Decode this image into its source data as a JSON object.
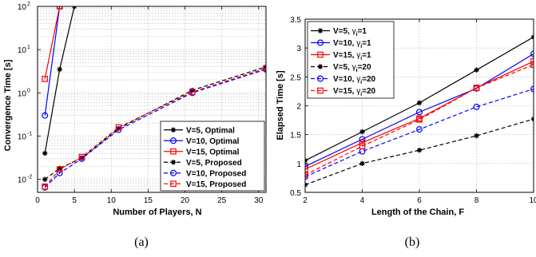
{
  "chart_data": [
    {
      "type": "line",
      "caption": "(a)",
      "xlabel": "Number of Players, N",
      "ylabel": "Convergence Time [s]",
      "xlim": [
        0,
        31
      ],
      "ylim": [
        0.005,
        100
      ],
      "yscale": "log",
      "grid": true,
      "legend_position": "bottom-right",
      "xticks": [
        0,
        5,
        10,
        15,
        20,
        25,
        30
      ],
      "xtick_labels": [
        "0",
        "5",
        "10",
        "15",
        "20",
        "25",
        "30"
      ],
      "ytick_labels": [
        "10",
        "10",
        "10",
        "10",
        "10"
      ],
      "ytick_exponents": [
        "-2",
        "-1",
        "0",
        "1",
        "2"
      ],
      "series": [
        {
          "name": "V=5, Optimal",
          "color": "#000000",
          "dash": "solid",
          "marker": "star",
          "x": [
            1,
            3,
            5
          ],
          "y": [
            0.04,
            3.5,
            100
          ]
        },
        {
          "name": "V=10, Optimal",
          "color": "#0000ff",
          "dash": "solid",
          "marker": "circle",
          "x": [
            1,
            3
          ],
          "y": [
            0.3,
            100
          ]
        },
        {
          "name": "V=15, Optimal",
          "color": "#ff0000",
          "dash": "solid",
          "marker": "square",
          "x": [
            1,
            3
          ],
          "y": [
            2.1,
            100
          ]
        },
        {
          "name": "V=5, Proposed",
          "color": "#000000",
          "dash": "dashed",
          "marker": "star",
          "x": [
            1,
            3,
            6,
            11,
            21,
            31
          ],
          "y": [
            0.01,
            0.018,
            0.031,
            0.15,
            1.15,
            4.0
          ]
        },
        {
          "name": "V=10, Proposed",
          "color": "#0000ff",
          "dash": "dashed",
          "marker": "circle",
          "x": [
            1,
            3,
            6,
            11,
            21,
            31
          ],
          "y": [
            0.0065,
            0.014,
            0.03,
            0.14,
            1.0,
            3.5
          ]
        },
        {
          "name": "V=15, Proposed",
          "color": "#ff0000",
          "dash": "dashed",
          "marker": "square",
          "x": [
            1,
            3,
            6,
            11,
            21,
            31
          ],
          "y": [
            0.0068,
            0.017,
            0.033,
            0.16,
            1.05,
            3.7
          ]
        }
      ]
    },
    {
      "type": "line",
      "caption": "(b)",
      "xlabel": "Length of the Chain, F",
      "ylabel": "Elapsed Time [s]",
      "xlim": [
        2,
        10
      ],
      "ylim": [
        0.5,
        3.5
      ],
      "yscale": "linear",
      "grid": true,
      "legend_position": "top-left",
      "xticks": [
        2,
        4,
        6,
        8,
        10
      ],
      "xtick_labels": [
        "2",
        "4",
        "6",
        "8",
        "10"
      ],
      "yticks": [
        0.5,
        1,
        1.5,
        2,
        2.5,
        3,
        3.5
      ],
      "ytick_labels": [
        "0.5",
        "1",
        "1.5",
        "2",
        "2.5",
        "3",
        "3.5"
      ],
      "series": [
        {
          "name": "V=5, ",
          "gamma": "γ",
          "sub": "i",
          "eq": "=1",
          "color": "#000000",
          "dash": "solid",
          "marker": "star",
          "x": [
            2,
            4,
            6,
            8,
            10
          ],
          "y": [
            1.05,
            1.55,
            2.05,
            2.62,
            3.19
          ]
        },
        {
          "name": "V=10, ",
          "gamma": "γ",
          "sub": "i",
          "eq": "=1",
          "color": "#0000ff",
          "dash": "solid",
          "marker": "circle",
          "x": [
            2,
            4,
            6,
            8,
            10
          ],
          "y": [
            0.95,
            1.42,
            1.89,
            2.3,
            2.9
          ]
        },
        {
          "name": "V=15, ",
          "gamma": "γ",
          "sub": "i",
          "eq": "=1",
          "color": "#ff0000",
          "dash": "solid",
          "marker": "square",
          "x": [
            2,
            4,
            6,
            8,
            10
          ],
          "y": [
            0.9,
            1.36,
            1.78,
            2.31,
            2.77
          ]
        },
        {
          "name": "V=5, ",
          "gamma": "γ",
          "sub": "i",
          "eq": "=20",
          "color": "#000000",
          "dash": "dashed",
          "marker": "star",
          "x": [
            2,
            4,
            6,
            8,
            10
          ],
          "y": [
            0.63,
            1.0,
            1.23,
            1.48,
            1.77
          ]
        },
        {
          "name": "V=10, ",
          "gamma": "γ",
          "sub": "i",
          "eq": "=20",
          "color": "#0000ff",
          "dash": "dashed",
          "marker": "circle",
          "x": [
            2,
            4,
            6,
            8,
            10
          ],
          "y": [
            0.77,
            1.21,
            1.59,
            1.98,
            2.29
          ]
        },
        {
          "name": "V=15, ",
          "gamma": "γ",
          "sub": "i",
          "eq": "=20",
          "color": "#ff0000",
          "dash": "dashed",
          "marker": "square",
          "x": [
            2,
            4,
            6,
            8,
            10
          ],
          "y": [
            0.8,
            1.3,
            1.76,
            2.31,
            2.71
          ]
        }
      ]
    }
  ]
}
